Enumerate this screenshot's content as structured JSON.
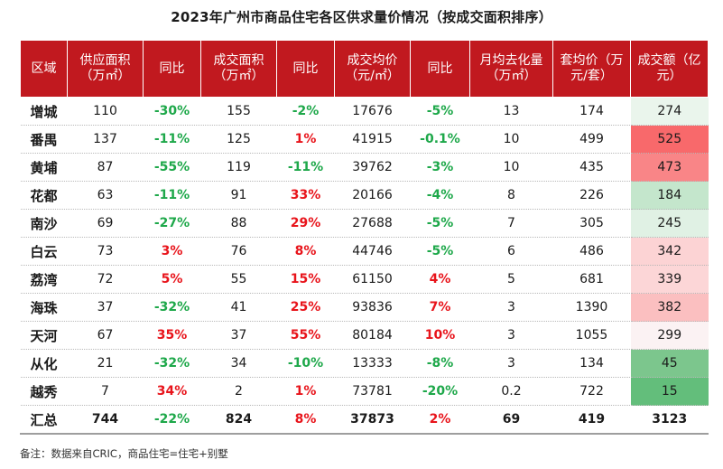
{
  "title": "2023年广州市商品住宅各区供求量价情况（按成交面积排序）",
  "headers": [
    "区域",
    "供应面积（万㎡）",
    "同比",
    "成交面积（万㎡）",
    "同比",
    "成交均价（元/㎡）",
    "同比",
    "月均去化量（万㎡）",
    "套均价（万元/套）",
    "成交额（亿元）"
  ],
  "rows": [
    {
      "region": "增城",
      "supply": "110",
      "supply_yoy": "-30%",
      "deal_area": "155",
      "deal_yoy": "-2%",
      "price": "17676",
      "price_yoy": "-5%",
      "monthly": "13",
      "unit_price": "174",
      "amount": "274",
      "amount_bg": "#eaf5ec"
    },
    {
      "region": "番禺",
      "supply": "137",
      "supply_yoy": "-11%",
      "deal_area": "125",
      "deal_yoy": "1%",
      "price": "41915",
      "price_yoy": "-0.1%",
      "monthly": "10",
      "unit_price": "499",
      "amount": "525",
      "amount_bg": "#f8696b"
    },
    {
      "region": "黄埔",
      "supply": "87",
      "supply_yoy": "-55%",
      "deal_area": "119",
      "deal_yoy": "-11%",
      "price": "39762",
      "price_yoy": "-3%",
      "monthly": "10",
      "unit_price": "435",
      "amount": "473",
      "amount_bg": "#f98587"
    },
    {
      "region": "花都",
      "supply": "63",
      "supply_yoy": "-11%",
      "deal_area": "91",
      "deal_yoy": "33%",
      "price": "20166",
      "price_yoy": "-4%",
      "monthly": "8",
      "unit_price": "226",
      "amount": "184",
      "amount_bg": "#c4e6cc"
    },
    {
      "region": "南沙",
      "supply": "69",
      "supply_yoy": "-27%",
      "deal_area": "88",
      "deal_yoy": "29%",
      "price": "27688",
      "price_yoy": "-5%",
      "monthly": "7",
      "unit_price": "305",
      "amount": "245",
      "amount_bg": "#e0f1e4"
    },
    {
      "region": "白云",
      "supply": "73",
      "supply_yoy": "3%",
      "deal_area": "76",
      "deal_yoy": "8%",
      "price": "44746",
      "price_yoy": "-5%",
      "monthly": "6",
      "unit_price": "486",
      "amount": "342",
      "amount_bg": "#fcd3d4"
    },
    {
      "region": "荔湾",
      "supply": "72",
      "supply_yoy": "5%",
      "deal_area": "55",
      "deal_yoy": "15%",
      "price": "61150",
      "price_yoy": "4%",
      "monthly": "5",
      "unit_price": "681",
      "amount": "339",
      "amount_bg": "#fcd6d7"
    },
    {
      "region": "海珠",
      "supply": "37",
      "supply_yoy": "-32%",
      "deal_area": "41",
      "deal_yoy": "25%",
      "price": "93836",
      "price_yoy": "7%",
      "monthly": "3",
      "unit_price": "1390",
      "amount": "382",
      "amount_bg": "#fbbfc0"
    },
    {
      "region": "天河",
      "supply": "67",
      "supply_yoy": "35%",
      "deal_area": "37",
      "deal_yoy": "55%",
      "price": "80184",
      "price_yoy": "10%",
      "monthly": "3",
      "unit_price": "1055",
      "amount": "299",
      "amount_bg": "#fbf2f3"
    },
    {
      "region": "从化",
      "supply": "21",
      "supply_yoy": "-32%",
      "deal_area": "34",
      "deal_yoy": "-10%",
      "price": "13333",
      "price_yoy": "-8%",
      "monthly": "3",
      "unit_price": "134",
      "amount": "45",
      "amount_bg": "#7cc68d"
    },
    {
      "region": "越秀",
      "supply": "7",
      "supply_yoy": "34%",
      "deal_area": "2",
      "deal_yoy": "1%",
      "price": "73781",
      "price_yoy": "-20%",
      "monthly": "0.2",
      "unit_price": "722",
      "amount": "15",
      "amount_bg": "#63be7b"
    }
  ],
  "summary": {
    "region": "汇总",
    "supply": "744",
    "supply_yoy": "-22%",
    "deal_area": "824",
    "deal_yoy": "8%",
    "price": "37873",
    "price_yoy": "2%",
    "monthly": "69",
    "unit_price": "419",
    "amount": "3123"
  },
  "note": "备注：数据来自CRIC，商品住宅=住宅+别墅",
  "colors": {
    "header_bg": "#c1191f",
    "positive": "#e8141b",
    "negative": "#1ea84a"
  }
}
